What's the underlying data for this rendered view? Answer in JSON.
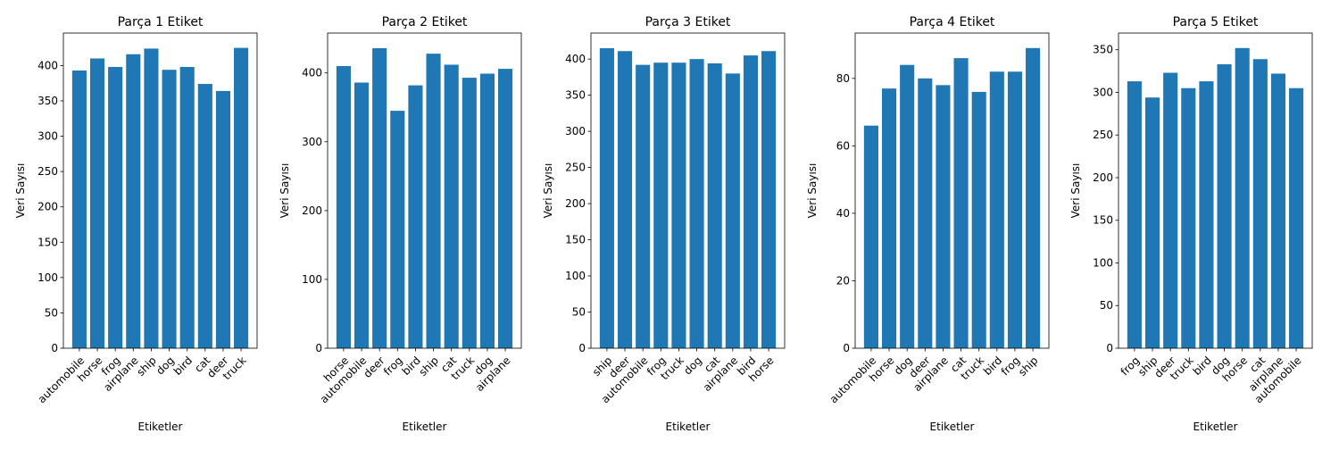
{
  "chart_data": [
    {
      "type": "bar",
      "title": "Parça 1 Etiket",
      "xlabel": "Etiketler",
      "ylabel": "Veri Sayısı",
      "categories": [
        "automobile",
        "horse",
        "frog",
        "airplane",
        "ship",
        "dog",
        "bird",
        "cat",
        "deer",
        "truck"
      ],
      "values": [
        393,
        410,
        398,
        416,
        424,
        394,
        398,
        374,
        364,
        425
      ],
      "ylim": [
        0,
        446
      ],
      "yticks": [
        0,
        50,
        100,
        150,
        200,
        250,
        300,
        350,
        400
      ],
      "color": "#1f77b4"
    },
    {
      "type": "bar",
      "title": "Parça 2 Etiket",
      "xlabel": "Etiketler",
      "ylabel": "Veri Sayısı",
      "categories": [
        "horse",
        "automobile",
        "deer",
        "frog",
        "bird",
        "ship",
        "cat",
        "truck",
        "dog",
        "airplane"
      ],
      "values": [
        410,
        386,
        436,
        345,
        382,
        428,
        412,
        393,
        399,
        406
      ],
      "ylim": [
        0,
        458
      ],
      "yticks": [
        0,
        100,
        200,
        300,
        400
      ],
      "color": "#1f77b4"
    },
    {
      "type": "bar",
      "title": "Parça 3 Etiket",
      "xlabel": "Etiketler",
      "ylabel": "Veri Sayısı",
      "categories": [
        "ship",
        "deer",
        "automobile",
        "frog",
        "truck",
        "dog",
        "cat",
        "airplane",
        "bird",
        "horse"
      ],
      "values": [
        415,
        411,
        392,
        395,
        395,
        400,
        394,
        380,
        405,
        411
      ],
      "ylim": [
        0,
        436
      ],
      "yticks": [
        0,
        50,
        100,
        150,
        200,
        250,
        300,
        350,
        400
      ],
      "color": "#1f77b4"
    },
    {
      "type": "bar",
      "title": "Parça 4 Etiket",
      "xlabel": "Etiketler",
      "ylabel": "Veri Sayısı",
      "categories": [
        "automobile",
        "horse",
        "dog",
        "deer",
        "airplane",
        "cat",
        "truck",
        "bird",
        "frog",
        "ship"
      ],
      "values": [
        66,
        77,
        84,
        80,
        78,
        86,
        76,
        82,
        82,
        89
      ],
      "ylim": [
        0,
        93.45
      ],
      "yticks": [
        0,
        20,
        40,
        60,
        80
      ],
      "color": "#1f77b4"
    },
    {
      "type": "bar",
      "title": "Parça 5 Etiket",
      "xlabel": "Etiketler",
      "ylabel": "Veri Sayısı",
      "categories": [
        "frog",
        "ship",
        "deer",
        "truck",
        "bird",
        "dog",
        "horse",
        "cat",
        "airplane",
        "automobile"
      ],
      "values": [
        313,
        294,
        323,
        305,
        313,
        333,
        352,
        339,
        322,
        305
      ],
      "ylim": [
        0,
        369.6
      ],
      "yticks": [
        0,
        50,
        100,
        150,
        200,
        250,
        300,
        350
      ],
      "color": "#1f77b4"
    }
  ]
}
